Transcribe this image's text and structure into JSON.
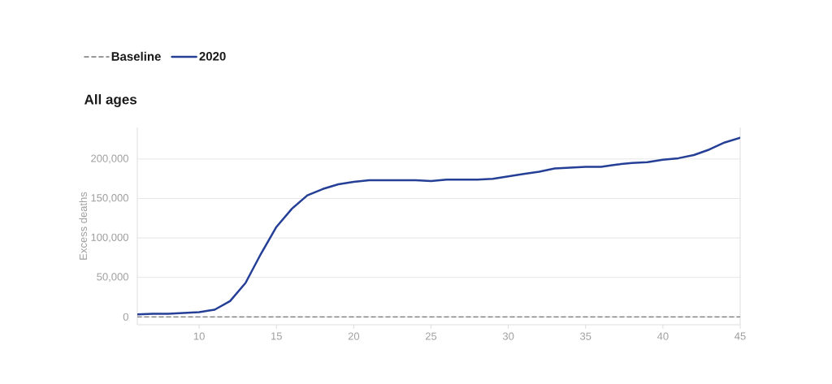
{
  "chart_data": {
    "type": "line",
    "title": "All ages",
    "ylabel": "Excess deaths",
    "x": [
      6,
      7,
      8,
      9,
      10,
      11,
      12,
      13,
      14,
      15,
      16,
      17,
      18,
      19,
      20,
      21,
      22,
      23,
      24,
      25,
      26,
      27,
      28,
      29,
      30,
      31,
      32,
      33,
      34,
      35,
      36,
      37,
      38,
      39,
      40,
      41,
      42,
      43,
      44,
      45
    ],
    "series": [
      {
        "name": "Baseline",
        "color": "#777777",
        "line_style": "dashed",
        "values": [
          0,
          0,
          0,
          0,
          0,
          0,
          0,
          0,
          0,
          0,
          0,
          0,
          0,
          0,
          0,
          0,
          0,
          0,
          0,
          0,
          0,
          0,
          0,
          0,
          0,
          0,
          0,
          0,
          0,
          0,
          0,
          0,
          0,
          0,
          0,
          0,
          0,
          0,
          0,
          0
        ]
      },
      {
        "name": "2020",
        "color": "#243f95",
        "line_style": "solid",
        "values": [
          3000,
          4000,
          4000,
          5000,
          6000,
          9000,
          20000,
          43000,
          80000,
          114000,
          137000,
          154000,
          162000,
          168000,
          171000,
          173000,
          173000,
          173000,
          173000,
          172000,
          174000,
          174000,
          174000,
          175000,
          178000,
          181000,
          184000,
          188000,
          189000,
          190000,
          190000,
          193000,
          195000,
          196000,
          199000,
          201000,
          205000,
          212000,
          221000,
          227000
        ]
      }
    ],
    "xlim": [
      6,
      45
    ],
    "ylim": [
      -10000,
      240000
    ],
    "xticks": [
      10,
      15,
      20,
      25,
      30,
      35,
      40,
      45
    ],
    "yticks": [
      0,
      {
        "value": 50000,
        "label": "50,000"
      },
      {
        "value": 100000,
        "label": "100,000"
      },
      {
        "value": 150000,
        "label": "150,000"
      },
      {
        "value": 200000,
        "label": "200,000"
      }
    ],
    "grid": "y",
    "legend": "top left"
  }
}
